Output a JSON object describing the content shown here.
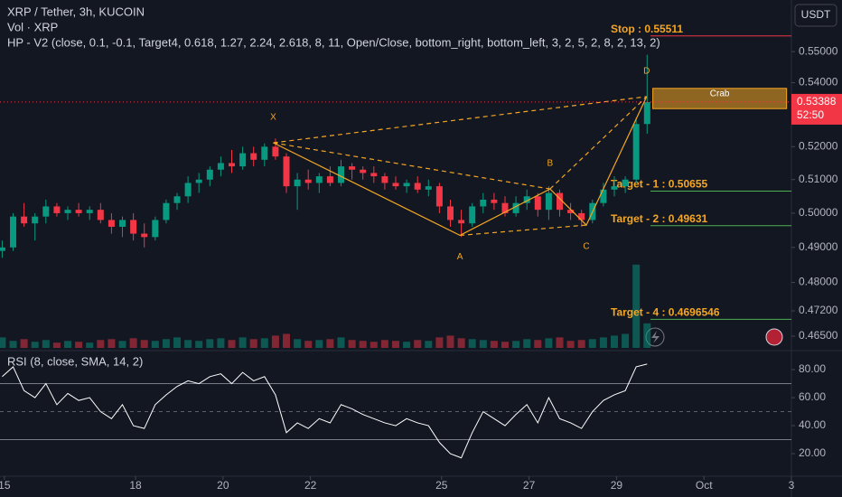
{
  "chart_data": {
    "type": "candlestick",
    "title": "XRP / Tether, 3h, KUCOIN",
    "subtitle": "Vol · XRP",
    "indicator": "HP - V2 (close, 0.1, -0.1, Target4, 0.618, 1.27, 2.24, 2.618, 8, 11, Open/Close, bottom_right, bottom_left, 3, 2, 5, 2, 8, 2, 13, 2)",
    "currency": "USDT",
    "log": true,
    "up_color": "#089981",
    "down_color": "#f23645",
    "xlim": [
      14.9,
      33.0
    ],
    "xticks": [
      15,
      18,
      20,
      22,
      25,
      27,
      29,
      {
        "value": 31,
        "label": "Oct"
      },
      {
        "value": 33,
        "label": "3"
      }
    ],
    "ylim": [
      0.4618,
      0.567
    ],
    "yticks": [
      {
        "value": 0.465,
        "label": "0.46500"
      },
      {
        "value": 0.472,
        "label": "0.47200"
      },
      {
        "value": 0.48,
        "label": "0.48000"
      },
      {
        "value": 0.49,
        "label": "0.49000"
      },
      {
        "value": 0.5,
        "label": "0.50000"
      },
      {
        "value": 0.51,
        "label": "0.51000"
      },
      {
        "value": 0.52,
        "label": "0.52000"
      },
      {
        "value": 0.53,
        "label": "0.53000"
      },
      {
        "value": 0.54,
        "label": "0.54000"
      },
      {
        "value": 0.55,
        "label": "0.55000"
      }
    ],
    "x": [
      14.95,
      15.2,
      15.45,
      15.7,
      15.95,
      16.2,
      16.45,
      16.7,
      16.95,
      17.2,
      17.45,
      17.7,
      17.95,
      18.2,
      18.45,
      18.7,
      18.95,
      19.2,
      19.45,
      19.7,
      19.95,
      20.2,
      20.45,
      20.7,
      20.95,
      21.2,
      21.45,
      21.7,
      21.95,
      22.2,
      22.45,
      22.7,
      22.95,
      23.2,
      23.45,
      23.7,
      23.95,
      24.2,
      24.45,
      24.7,
      24.95,
      25.2,
      25.45,
      25.7,
      25.95,
      26.2,
      26.45,
      26.7,
      26.95,
      27.2,
      27.45,
      27.7,
      27.95,
      28.2,
      28.45,
      28.7,
      28.95,
      29.2,
      29.45,
      29.7
    ],
    "candles": [
      [
        0.489,
        0.492,
        0.487,
        0.49
      ],
      [
        0.49,
        0.5,
        0.489,
        0.499
      ],
      [
        0.499,
        0.503,
        0.496,
        0.497
      ],
      [
        0.497,
        0.5,
        0.492,
        0.499
      ],
      [
        0.499,
        0.504,
        0.497,
        0.502
      ],
      [
        0.502,
        0.503,
        0.499,
        0.5
      ],
      [
        0.5,
        0.502,
        0.498,
        0.501
      ],
      [
        0.501,
        0.503,
        0.499,
        0.5
      ],
      [
        0.5,
        0.502,
        0.498,
        0.501
      ],
      [
        0.501,
        0.503,
        0.497,
        0.498
      ],
      [
        0.498,
        0.5,
        0.494,
        0.496
      ],
      [
        0.496,
        0.499,
        0.493,
        0.498
      ],
      [
        0.498,
        0.5,
        0.492,
        0.494
      ],
      [
        0.494,
        0.497,
        0.49,
        0.493
      ],
      [
        0.493,
        0.499,
        0.492,
        0.498
      ],
      [
        0.498,
        0.504,
        0.497,
        0.503
      ],
      [
        0.503,
        0.506,
        0.501,
        0.505
      ],
      [
        0.505,
        0.511,
        0.503,
        0.509
      ],
      [
        0.509,
        0.512,
        0.506,
        0.51
      ],
      [
        0.51,
        0.514,
        0.508,
        0.513
      ],
      [
        0.513,
        0.517,
        0.511,
        0.515
      ],
      [
        0.515,
        0.519,
        0.512,
        0.514
      ],
      [
        0.514,
        0.52,
        0.513,
        0.518
      ],
      [
        0.518,
        0.52,
        0.514,
        0.516
      ],
      [
        0.516,
        0.521,
        0.514,
        0.52
      ],
      [
        0.52,
        0.5225,
        0.516,
        0.517
      ],
      [
        0.517,
        0.518,
        0.506,
        0.508
      ],
      [
        0.508,
        0.512,
        0.501,
        0.51
      ],
      [
        0.51,
        0.513,
        0.507,
        0.509
      ],
      [
        0.509,
        0.512,
        0.506,
        0.511
      ],
      [
        0.511,
        0.514,
        0.508,
        0.509
      ],
      [
        0.509,
        0.516,
        0.508,
        0.514
      ],
      [
        0.514,
        0.515,
        0.51,
        0.513
      ],
      [
        0.513,
        0.514,
        0.51,
        0.512
      ],
      [
        0.512,
        0.514,
        0.509,
        0.511
      ],
      [
        0.511,
        0.512,
        0.507,
        0.509
      ],
      [
        0.509,
        0.511,
        0.507,
        0.508
      ],
      [
        0.508,
        0.51,
        0.506,
        0.509
      ],
      [
        0.509,
        0.511,
        0.506,
        0.507
      ],
      [
        0.507,
        0.51,
        0.505,
        0.508
      ],
      [
        0.508,
        0.509,
        0.5,
        0.502
      ],
      [
        0.502,
        0.504,
        0.496,
        0.498
      ],
      [
        0.498,
        0.501,
        0.493,
        0.497
      ],
      [
        0.497,
        0.503,
        0.496,
        0.502
      ],
      [
        0.502,
        0.506,
        0.5,
        0.504
      ],
      [
        0.504,
        0.506,
        0.501,
        0.503
      ],
      [
        0.503,
        0.505,
        0.499,
        0.5
      ],
      [
        0.5,
        0.505,
        0.499,
        0.503
      ],
      [
        0.503,
        0.507,
        0.501,
        0.505
      ],
      [
        0.505,
        0.506,
        0.499,
        0.501
      ],
      [
        0.501,
        0.508,
        0.498,
        0.506
      ],
      [
        0.506,
        0.507,
        0.499,
        0.501
      ],
      [
        0.501,
        0.503,
        0.498,
        0.5
      ],
      [
        0.5,
        0.501,
        0.496,
        0.498
      ],
      [
        0.498,
        0.504,
        0.497,
        0.503
      ],
      [
        0.503,
        0.509,
        0.502,
        0.507
      ],
      [
        0.507,
        0.511,
        0.505,
        0.508
      ],
      [
        0.508,
        0.511,
        0.506,
        0.51
      ],
      [
        0.51,
        0.529,
        0.509,
        0.527
      ],
      [
        0.527,
        0.549,
        0.524,
        0.53388
      ]
    ],
    "volume": {
      "ylim": [
        0,
        100
      ],
      "values": [
        12,
        8,
        10,
        7,
        9,
        6,
        8,
        7,
        6,
        9,
        10,
        8,
        11,
        9,
        8,
        10,
        12,
        9,
        8,
        10,
        11,
        9,
        12,
        10,
        11,
        14,
        16,
        10,
        8,
        9,
        10,
        12,
        9,
        8,
        7,
        9,
        8,
        7,
        9,
        8,
        12,
        14,
        11,
        10,
        9,
        8,
        7,
        8,
        10,
        9,
        11,
        12,
        8,
        9,
        10,
        12,
        14,
        16,
        95,
        28
      ]
    },
    "rsi": {
      "title": "RSI (8, close, SMA, 14, 2)",
      "color": "#ffffff",
      "ylim": [
        5.2,
        91
      ],
      "yticks": [
        {
          "value": 20,
          "label": "20.00"
        },
        {
          "value": 40,
          "label": "40.00"
        },
        {
          "value": 60,
          "label": "60.00"
        },
        {
          "value": 80,
          "label": "80.00"
        }
      ],
      "bands": [
        30,
        50,
        70
      ],
      "values": [
        75,
        82,
        65,
        60,
        70,
        55,
        63,
        58,
        60,
        50,
        45,
        55,
        40,
        38,
        55,
        62,
        68,
        72,
        70,
        75,
        77,
        70,
        78,
        72,
        75,
        62,
        35,
        42,
        38,
        45,
        42,
        55,
        52,
        48,
        45,
        42,
        40,
        45,
        42,
        40,
        28,
        20,
        17,
        35,
        50,
        45,
        40,
        48,
        55,
        42,
        60,
        45,
        42,
        38,
        50,
        58,
        62,
        65,
        82,
        84
      ]
    },
    "pattern": {
      "color": "#f5a623",
      "points": [
        {
          "label": "X",
          "x": 21.15,
          "y": 0.5212
        },
        {
          "label": "A",
          "x": 25.42,
          "y": 0.4935
        },
        {
          "label": "B",
          "x": 27.48,
          "y": 0.5072
        },
        {
          "label": "C",
          "x": 28.31,
          "y": 0.4965
        },
        {
          "label": "D",
          "x": 29.69,
          "y": 0.5356
        }
      ]
    },
    "box": {
      "label": "Crab",
      "xlim": [
        29.83,
        32.89
      ],
      "ylim": [
        0.5318,
        0.5382
      ],
      "color": "#f5a623"
    },
    "levels": [
      {
        "label": "Stop : 0.55511",
        "value": 0.55511,
        "color": "#f23645"
      },
      {
        "label": "Target - 1 : 0.50655",
        "value": 0.50655,
        "color": "#4caf50"
      },
      {
        "label": "Target - 2 : 0.49631",
        "value": 0.49631,
        "color": "#4caf50"
      },
      {
        "label": "Target - 4 : 0.4696546",
        "value": 0.4696546,
        "color": "#4caf50"
      }
    ],
    "last": {
      "value": 0.53388,
      "countdown": "52:50",
      "color": "#f23645"
    }
  }
}
